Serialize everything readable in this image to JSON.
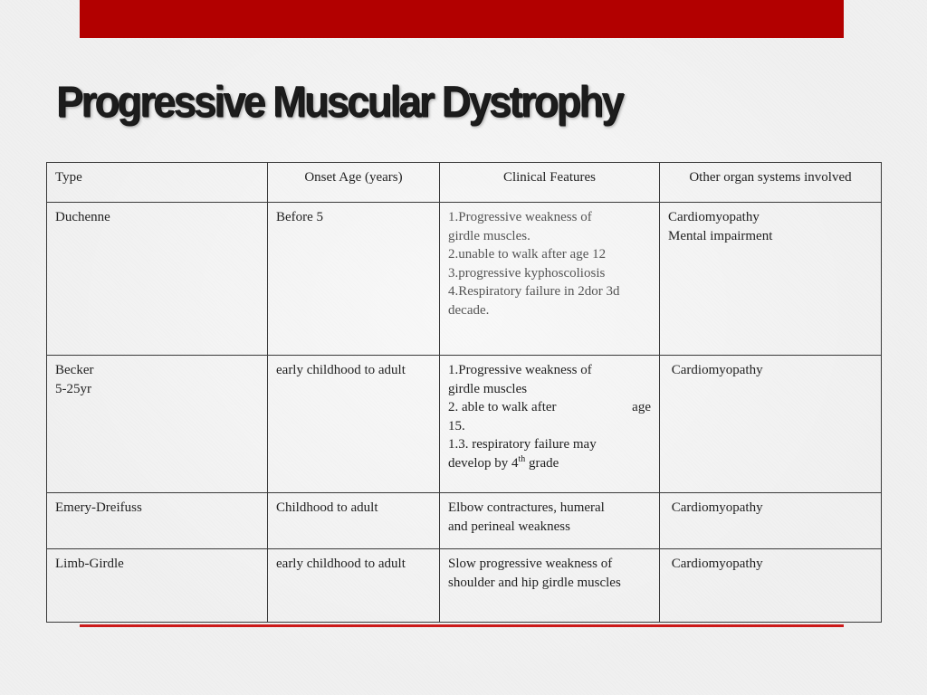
{
  "slide": {
    "title": "Progressive Muscular Dystrophy",
    "accent_color": "#b20000"
  },
  "table": {
    "headers": [
      "Type",
      "Onset Age  (years)",
      "Clinical Features",
      "Other organ systems involved"
    ],
    "rows": [
      {
        "type": [
          "Duchenne"
        ],
        "onset": "Before 5",
        "features": [
          "1.Progressive weakness of",
          "girdle muscles.",
          "2.unable to walk after age 12",
          "3.progressive kyphoscoliosis",
          "4.Respiratory failure in 2dor 3d",
          "decade."
        ],
        "organs": [
          "Cardiomyopathy",
          "Mental impairment"
        ]
      },
      {
        "type": [
          "Becker",
          "5-25yr"
        ],
        "onset": "early childhood to adult",
        "features": {
          "line1": "1.Progressive weakness of",
          "line2": "girdle muscles",
          "line3_left": "2. able to walk after",
          "line3_right": "age",
          "line4": "15.",
          "line5": "1.3. respiratory failure may",
          "line6_prefix": "develop by 4",
          "line6_sup": "th",
          "line6_suffix": " grade"
        },
        "organs": [
          " Cardiomyopathy"
        ]
      },
      {
        "type": [
          "Emery-Dreifuss"
        ],
        "onset": "Childhood to adult",
        "features": [
          "Elbow contractures, humeral",
          "and perineal weakness"
        ],
        "organs": [
          " Cardiomyopathy"
        ]
      },
      {
        "type": [
          "Limb-Girdle"
        ],
        "onset": "early childhood to adult",
        "features": [
          "Slow progressive weakness of",
          "shoulder and hip girdle muscles"
        ],
        "organs": [
          " Cardiomyopathy"
        ]
      }
    ]
  }
}
